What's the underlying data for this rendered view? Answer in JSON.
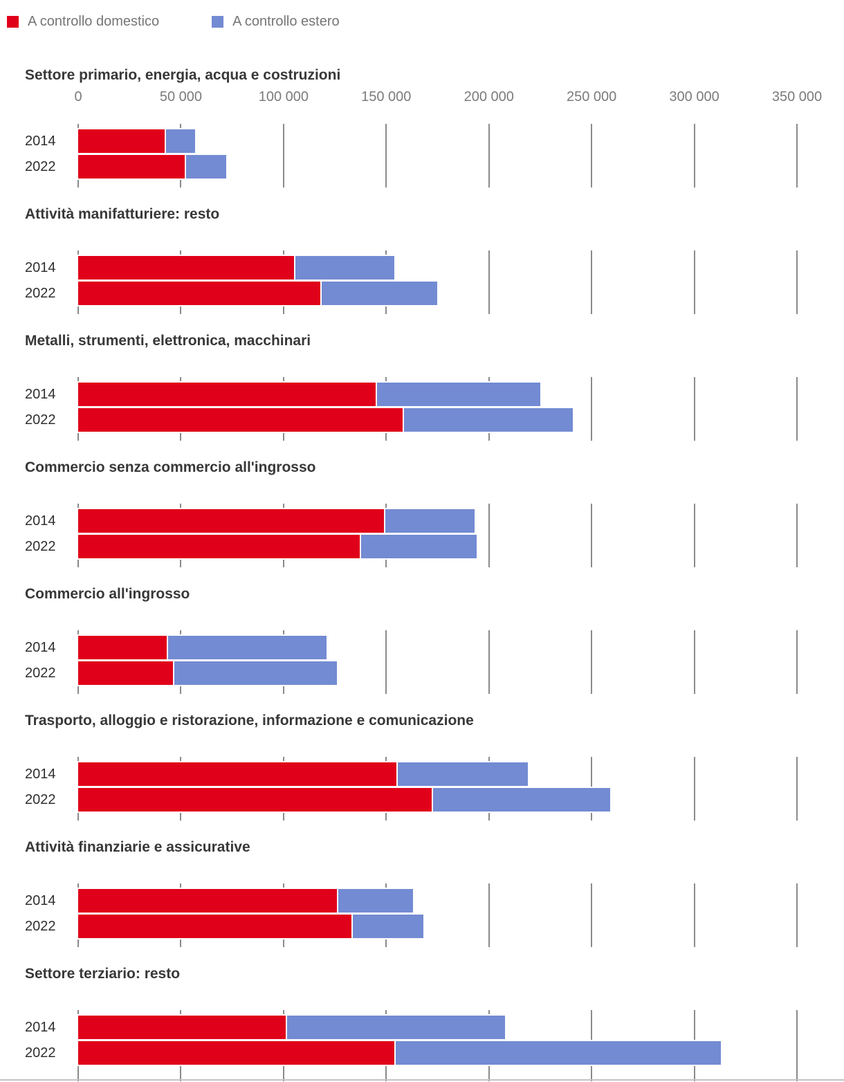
{
  "legend": {
    "items": [
      {
        "label": "A controllo domestico",
        "color": "#e00019"
      },
      {
        "label": "A controllo estero",
        "color": "#738bd3"
      }
    ]
  },
  "axis": {
    "tick_labels": [
      "0",
      "50 000",
      "100 000",
      "150 000",
      "200 000",
      "250 000",
      "300 000",
      "350 000"
    ],
    "ticks": [
      0,
      50000,
      100000,
      150000,
      200000,
      250000,
      300000,
      350000
    ],
    "max": 350000
  },
  "chart_data": {
    "type": "bar",
    "orientation": "horizontal",
    "stacked": true,
    "series_names": [
      "A controllo domestico",
      "A controllo estero"
    ],
    "colors": [
      "#e00019",
      "#738bd3"
    ],
    "xlim": [
      0,
      350000
    ],
    "x_ticks": [
      0,
      50000,
      100000,
      150000,
      200000,
      250000,
      300000,
      350000
    ],
    "grid": true,
    "legend_position": "top",
    "groups": [
      {
        "title": "Settore primario, energia, acqua e costruzioni",
        "rows": [
          {
            "year": "2014",
            "values": [
              42000,
              15000
            ]
          },
          {
            "year": "2022",
            "values": [
              52000,
              20000
            ]
          }
        ]
      },
      {
        "title": "Attività manifatturiere: resto",
        "rows": [
          {
            "year": "2014",
            "values": [
              105000,
              49000
            ]
          },
          {
            "year": "2022",
            "values": [
              118000,
              57000
            ]
          }
        ]
      },
      {
        "title": "Metalli, strumenti, elettronica, macchinari",
        "rows": [
          {
            "year": "2014",
            "values": [
              145000,
              80000
            ]
          },
          {
            "year": "2022",
            "values": [
              158000,
              83000
            ]
          }
        ]
      },
      {
        "title": "Commercio senza commercio all'ingrosso",
        "rows": [
          {
            "year": "2014",
            "values": [
              149000,
              44000
            ]
          },
          {
            "year": "2022",
            "values": [
              137000,
              57000
            ]
          }
        ]
      },
      {
        "title": "Commercio all'ingrosso",
        "rows": [
          {
            "year": "2014",
            "values": [
              43000,
              78000
            ]
          },
          {
            "year": "2022",
            "values": [
              46000,
              80000
            ]
          }
        ]
      },
      {
        "title": "Trasporto, alloggio e ristorazione, informazione e comunicazione",
        "rows": [
          {
            "year": "2014",
            "values": [
              155000,
              64000
            ]
          },
          {
            "year": "2022",
            "values": [
              172000,
              87000
            ]
          }
        ]
      },
      {
        "title": "Attività finanziarie e assicurative",
        "rows": [
          {
            "year": "2014",
            "values": [
              126000,
              37000
            ]
          },
          {
            "year": "2022",
            "values": [
              133000,
              35000
            ]
          }
        ]
      },
      {
        "title": "Settore terziario: resto",
        "rows": [
          {
            "year": "2014",
            "values": [
              101000,
              107000
            ]
          },
          {
            "year": "2022",
            "values": [
              154000,
              159000
            ]
          }
        ]
      }
    ]
  }
}
